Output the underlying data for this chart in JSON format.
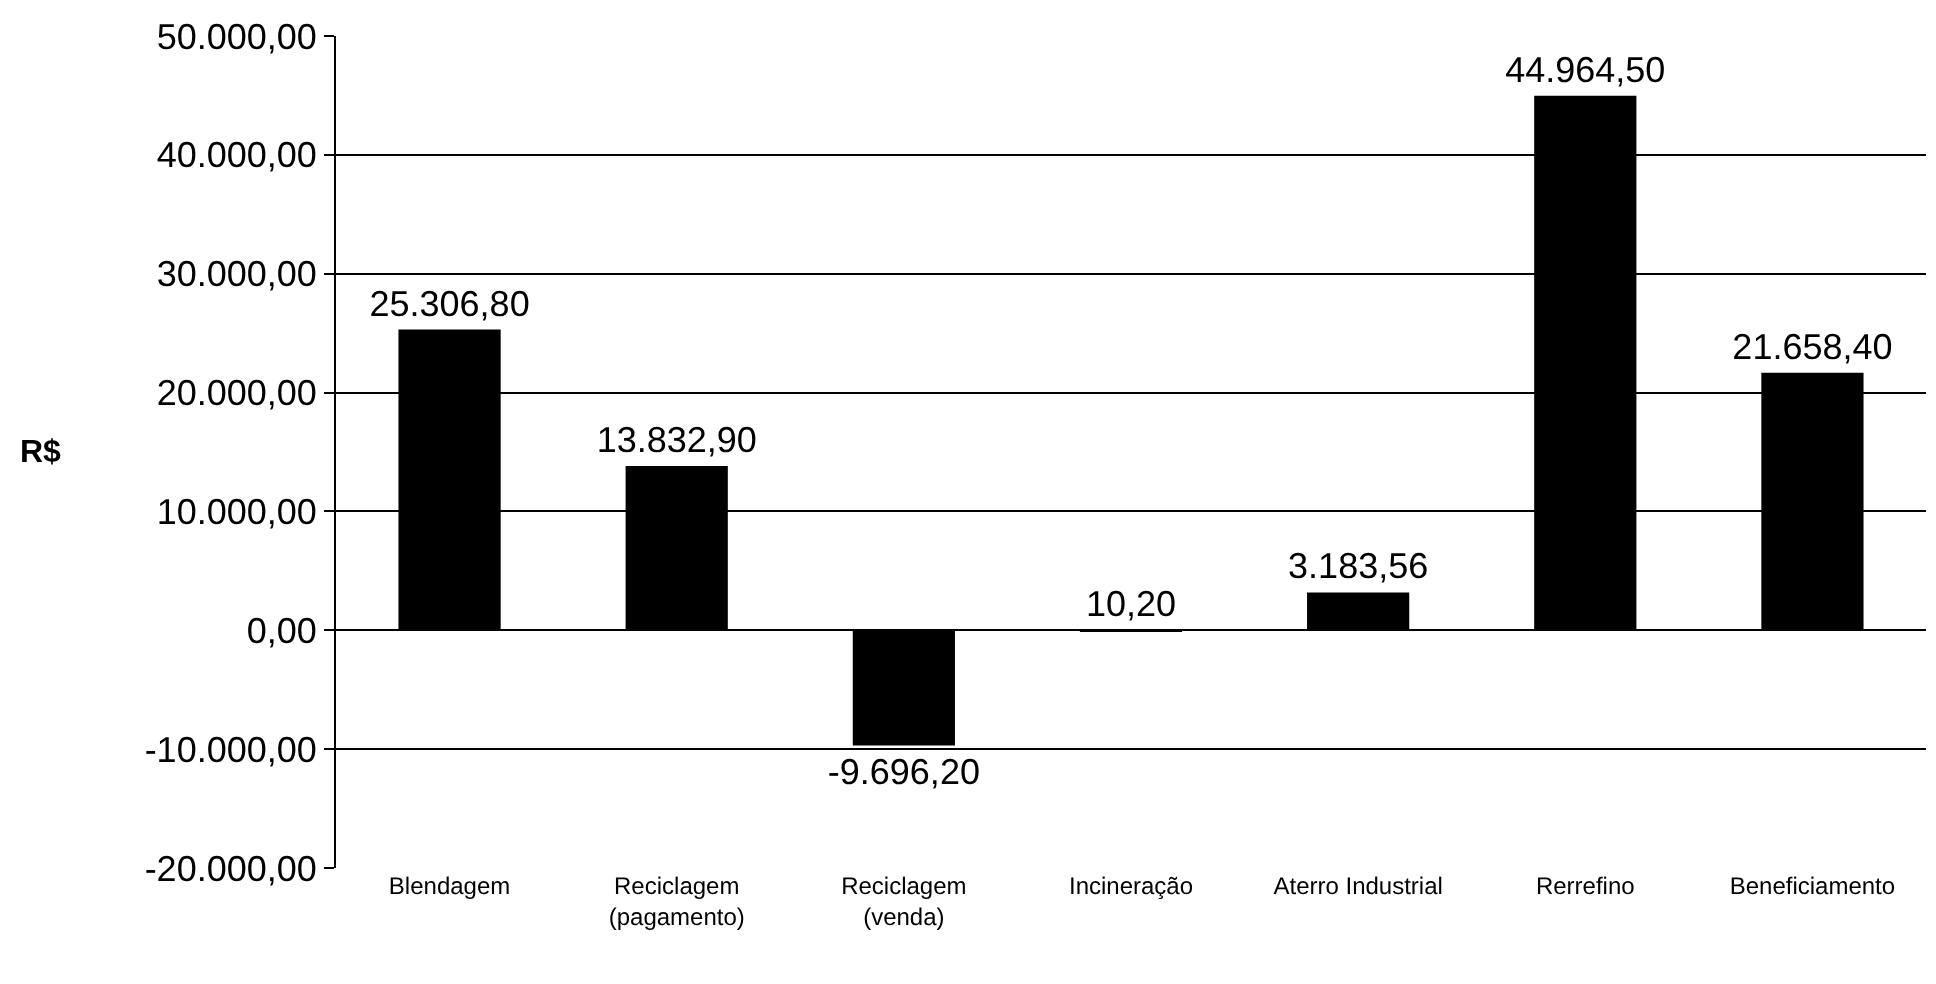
{
  "chart_data": {
    "type": "bar",
    "ylabel": "R$",
    "categories": [
      "Blendagem",
      "Reciclagem\n(pagamento)",
      "Reciclagem\n(venda)",
      "Incineração",
      "Aterro Industrial",
      "Rerrefino",
      "Beneficiamento"
    ],
    "series": [
      {
        "color": "#000000",
        "values": [
          25306.8,
          13832.9,
          -9696.2,
          10.2,
          3183.56,
          44964.5,
          21658.4
        ],
        "value_labels": [
          "25.306,80",
          "13.832,90",
          "-9.696,20",
          "10,20",
          "3.183,56",
          "44.964,50",
          "21.658,40"
        ]
      }
    ],
    "ylim": [
      -20000,
      50000
    ],
    "yticks": [
      {
        "value": -20000,
        "label": "-20.000,00"
      },
      {
        "value": -10000,
        "label": "-10.000,00"
      },
      {
        "value": 0,
        "label": "0,00"
      },
      {
        "value": 10000,
        "label": "10.000,00"
      },
      {
        "value": 20000,
        "label": "20.000,00"
      },
      {
        "value": 30000,
        "label": "30.000,00"
      },
      {
        "value": 40000,
        "label": "40.000,00"
      },
      {
        "value": 50000,
        "label": "50.000,00"
      }
    ],
    "grid": "y"
  }
}
